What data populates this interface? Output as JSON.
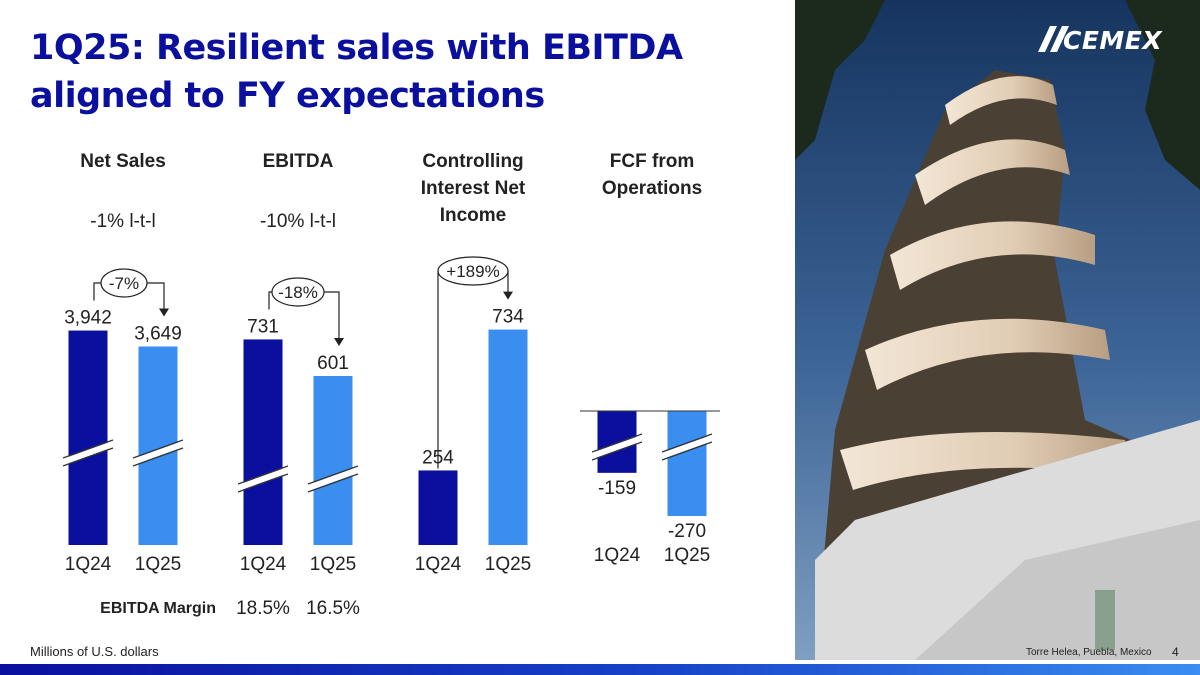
{
  "title": "1Q25: Resilient sales with EBITDA aligned to FY expectations",
  "brand": {
    "logo_text": "CEMEX",
    "primary": "#0a0f9e",
    "secondary": "#3a8ef0"
  },
  "photo_caption": "Torre Helea, Puebla, Mexico",
  "page_number": "4",
  "footnote": "Millions of U.S. dollars",
  "ebitda_margin": {
    "label": "EBITDA Margin",
    "values": [
      "18.5%",
      "16.5%"
    ]
  },
  "chart_data": [
    {
      "type": "bar",
      "title": "Net Sales",
      "subtitle": "-1% l-t-l",
      "change": "-7%",
      "categories": [
        "1Q24",
        "1Q25"
      ],
      "values": [
        3942,
        3649
      ],
      "labels": [
        "3,942",
        "3,649"
      ],
      "axis_break": true
    },
    {
      "type": "bar",
      "title": "EBITDA",
      "subtitle": "-10% l-t-l",
      "change": "-18%",
      "categories": [
        "1Q24",
        "1Q25"
      ],
      "values": [
        731,
        601
      ],
      "labels": [
        "731",
        "601"
      ],
      "axis_break": true
    },
    {
      "type": "bar",
      "title": "Controlling Interest Net Income",
      "subtitle": "",
      "change": "+189%",
      "categories": [
        "1Q24",
        "1Q25"
      ],
      "values": [
        254,
        734
      ],
      "labels": [
        "254",
        "734"
      ],
      "axis_break": false
    },
    {
      "type": "bar",
      "title": "FCF from Operations",
      "subtitle": "",
      "change": "",
      "categories": [
        "1Q24",
        "1Q25"
      ],
      "values": [
        -159,
        -270
      ],
      "labels": [
        "-159",
        "-270"
      ],
      "axis_break": true
    }
  ]
}
